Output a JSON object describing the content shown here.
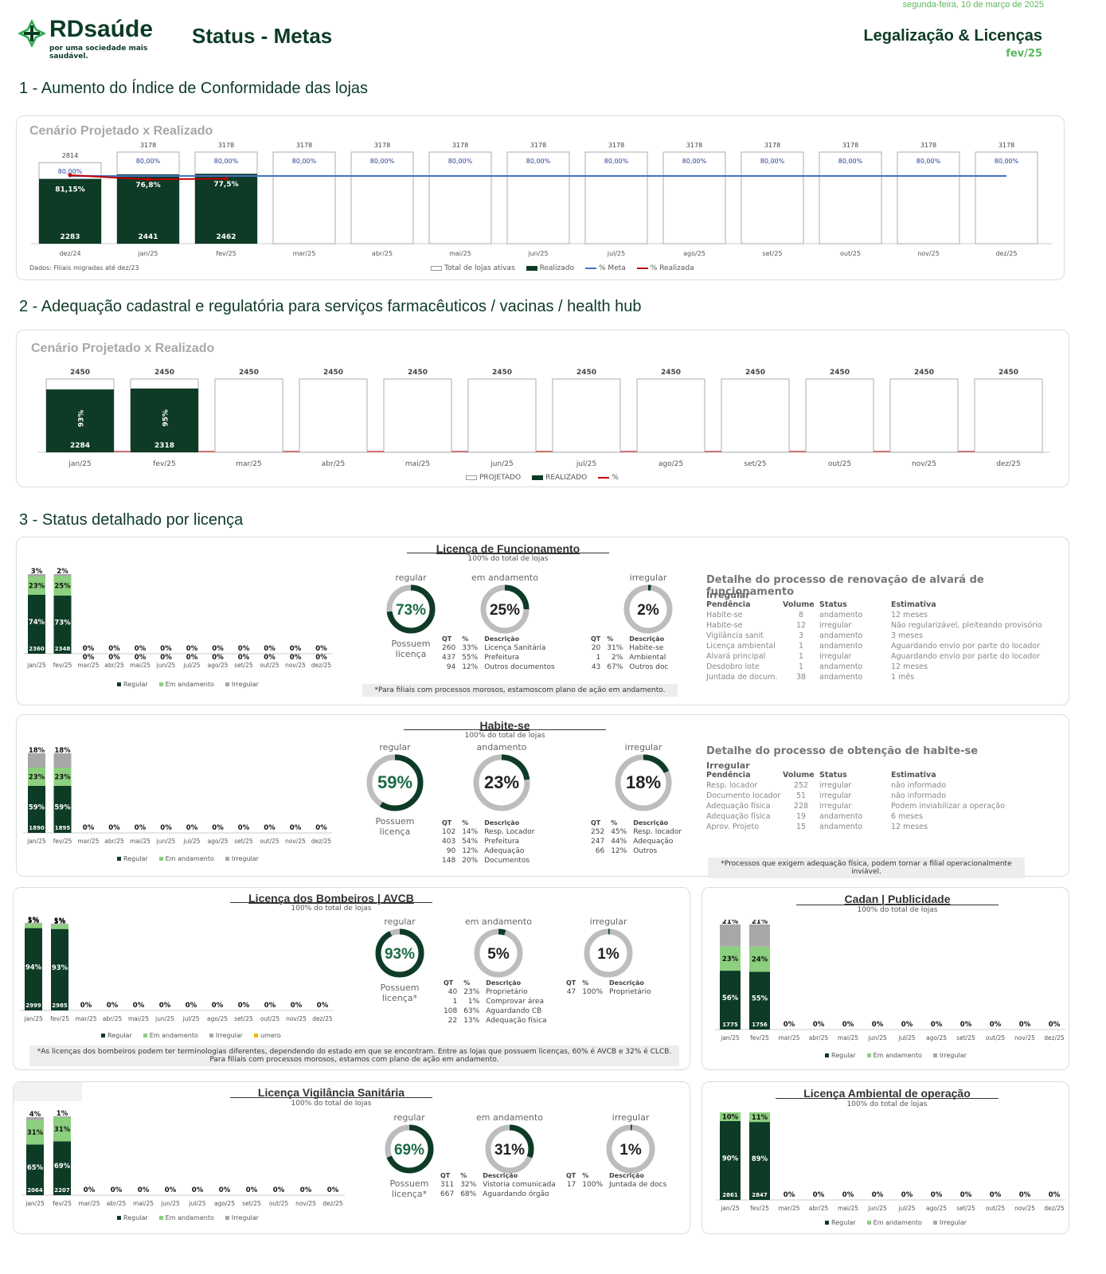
{
  "header": {
    "date": "segunda-feira, 10 de março de 2025",
    "logo_word": "RDsaúde",
    "logo_tag": "por uma sociedade mais saudável.",
    "title": "Status - Metas",
    "area": "Legalização & Licenças",
    "period": "fev/25"
  },
  "colors": {
    "dark": "#0d3b26",
    "light": "#8ccf7f",
    "gray": "#a7a7a7",
    "blue": "#4472c4",
    "red": "#c00000",
    "accent": "#2fa84f"
  },
  "s1": {
    "heading": "1 - Aumento do Índice de Conformidade das lojas",
    "panel_title": "Cenário Projetado x Realizado",
    "footnote": "Dados: Filiais migradas até dez/23",
    "legend": [
      "Total de lojas ativas",
      "Realizado",
      "% Meta",
      "% Realizada"
    ],
    "chart_data": {
      "type": "bar",
      "categories": [
        "dez/24",
        "jan/25",
        "fev/25",
        "mar/25",
        "abr/25",
        "mai/25",
        "jun/25",
        "jul/25",
        "ago/25",
        "set/25",
        "out/25",
        "nov/25",
        "dez/25"
      ],
      "series": [
        {
          "name": "Total de lojas ativas",
          "values": [
            2814,
            3178,
            3178,
            3178,
            3178,
            3178,
            3178,
            3178,
            3178,
            3178,
            3178,
            3178,
            3178
          ]
        },
        {
          "name": "Realizado",
          "values": [
            2283,
            2441,
            2462,
            null,
            null,
            null,
            null,
            null,
            null,
            null,
            null,
            null,
            null
          ]
        },
        {
          "name": "% Meta",
          "values": [
            80,
            80,
            80,
            80,
            80,
            80,
            80,
            80,
            80,
            80,
            80,
            80,
            80
          ]
        },
        {
          "name": "% Realizada",
          "values": [
            81.15,
            76.8,
            77.5,
            null,
            null,
            null,
            null,
            null,
            null,
            null,
            null,
            null,
            null
          ]
        }
      ],
      "meta_labels": [
        "80,00%",
        "80,00%",
        "80,00%",
        "80,00%",
        "80,00%",
        "80,00%",
        "80,00%",
        "80,00%",
        "80,00%",
        "80,00%",
        "80,00%",
        "80,00%",
        "80,00%"
      ],
      "pct_labels": [
        "81,15%",
        "76,8%",
        "77,5%"
      ]
    }
  },
  "s2": {
    "heading": "2 - Adequação cadastral e regulatória para serviços farmacêuticos / vacinas / health hub",
    "panel_title": "Cenário Projetado x Realizado",
    "legend": [
      "PROJETADO",
      "REALIZADO",
      "%"
    ],
    "chart_data": {
      "type": "bar",
      "categories": [
        "jan/25",
        "fev/25",
        "mar/25",
        "abr/25",
        "mai/25",
        "jun/25",
        "jul/25",
        "ago/25",
        "set/25",
        "out/25",
        "nov/25",
        "dez/25"
      ],
      "series": [
        {
          "name": "PROJETADO",
          "values": [
            2450,
            2450,
            2450,
            2450,
            2450,
            2450,
            2450,
            2450,
            2450,
            2450,
            2450,
            2450
          ]
        },
        {
          "name": "REALIZADO",
          "values": [
            2284,
            2318,
            null,
            null,
            null,
            null,
            null,
            null,
            null,
            null,
            null,
            null
          ]
        }
      ],
      "pct_labels": [
        "93%",
        "95%"
      ]
    }
  },
  "s3": {
    "heading": "3 - Status detalhado por licença"
  },
  "months": [
    "jan/25",
    "fev/25",
    "mar/25",
    "abr/25",
    "mai/25",
    "jun/25",
    "jul/25",
    "ago/25",
    "set/25",
    "out/25",
    "nov/25",
    "dez/25"
  ],
  "stack_legend": [
    "Regular",
    "Em andamento",
    "Irregular"
  ],
  "lf": {
    "title": "Licença de Funcionamento",
    "sub": "100% do total de lojas",
    "chart_data": {
      "type": "bar",
      "stacked": true,
      "series": [
        {
          "name": "Regular",
          "values": [
            74,
            73
          ]
        },
        {
          "name": "Em andamento",
          "values": [
            23,
            25
          ]
        },
        {
          "name": "Irregular",
          "values": [
            3,
            2
          ]
        }
      ],
      "counts": [
        "2360",
        "2348"
      ]
    },
    "donuts": [
      {
        "top": "regular",
        "pct": "73%",
        "value": 73,
        "bottom": "Possuem licença"
      },
      {
        "top": "em andamento",
        "pct": "25%",
        "value": 25,
        "bottom": ""
      },
      {
        "top": "irregular",
        "pct": "2%",
        "value": 2,
        "bottom": ""
      }
    ],
    "t_and": {
      "h": [
        "QT",
        "%",
        "Descrição"
      ],
      "rows": [
        [
          "260",
          "33%",
          "Licença Sanitária"
        ],
        [
          "437",
          "55%",
          "Prefeitura"
        ],
        [
          "94",
          "12%",
          "Outros documentos"
        ]
      ]
    },
    "t_irr": {
      "h": [
        "QT",
        "%",
        "Descrição"
      ],
      "rows": [
        [
          "20",
          "31%",
          "Habite-se"
        ],
        [
          "1",
          "2%",
          "Ambiental"
        ],
        [
          "43",
          "67%",
          "Outros doc"
        ]
      ]
    },
    "note": "*Para filiais com processos morosos, estamoscom plano de ação em andamento.",
    "detail": {
      "title": "Detalhe do processo de renovação de alvará de funcionamento",
      "sub": "Irregular",
      "h": [
        "Pendência",
        "Volume",
        "Status",
        "Estimativa"
      ],
      "rows": [
        [
          "Habite-se",
          "8",
          "andamento",
          "12 meses"
        ],
        [
          "Habite-se",
          "12",
          "irregular",
          "Não regularizável, pleiteando provisório"
        ],
        [
          "Vigilância sanit",
          "3",
          "andamento",
          "3 meses"
        ],
        [
          "Licença ambiental",
          "1",
          "andamento",
          "Aguardando envio por parte do locador"
        ],
        [
          "Alvará principal",
          "1",
          "irregular",
          "Aguardando envio por parte do locador"
        ],
        [
          "Desdobro lote",
          "1",
          "andamento",
          "12 meses"
        ],
        [
          "Juntada de docum.",
          "38",
          "andamento",
          "1 mês"
        ]
      ]
    }
  },
  "hs": {
    "title": "Habite-se",
    "sub": "100% do total de lojas",
    "chart_data": {
      "type": "bar",
      "stacked": true,
      "series": [
        {
          "name": "Regular",
          "values": [
            59,
            59
          ]
        },
        {
          "name": "Em andamento",
          "values": [
            23,
            23
          ]
        },
        {
          "name": "Irregular",
          "values": [
            18,
            18
          ]
        }
      ],
      "counts": [
        "1890",
        "1895"
      ]
    },
    "donuts": [
      {
        "top": "regular",
        "pct": "59%",
        "value": 59,
        "bottom": "Possuem licença"
      },
      {
        "top": "andamento",
        "pct": "23%",
        "value": 23,
        "bottom": ""
      },
      {
        "top": "irregular",
        "pct": "18%",
        "value": 18,
        "bottom": ""
      }
    ],
    "t_and": {
      "h": [
        "QT",
        "%",
        "Descrição"
      ],
      "rows": [
        [
          "102",
          "14%",
          "Resp. Locador"
        ],
        [
          "403",
          "54%",
          "Prefeitura"
        ],
        [
          "90",
          "12%",
          "Adequação"
        ],
        [
          "148",
          "20%",
          "Documentos"
        ]
      ]
    },
    "t_irr": {
      "h": [
        "QT",
        "%",
        "Descrição"
      ],
      "rows": [
        [
          "252",
          "45%",
          "Resp. locador"
        ],
        [
          "247",
          "44%",
          "Adequação"
        ],
        [
          "66",
          "12%",
          "Outros"
        ]
      ]
    },
    "note": "*Processos que exigem adequação física, podem tornar a filial operacionalmente inviável.",
    "detail": {
      "title": "Detalhe do processo de obtenção de habite-se",
      "sub": "Irregular",
      "h": [
        "Pendência",
        "Volume",
        "Status",
        "Estimativa"
      ],
      "rows": [
        [
          "Resp. locador",
          "252",
          "irregular",
          "não informado"
        ],
        [
          "Documento locador",
          "51",
          "irregular",
          "não informado"
        ],
        [
          "Adequação física",
          "228",
          "irregular",
          "Podem inviabilizar a operação"
        ],
        [
          "Adequação física",
          "19",
          "andamento",
          "6 meses"
        ],
        [
          "Aprov. Projeto",
          "15",
          "andamento",
          "12 meses"
        ]
      ]
    }
  },
  "bo": {
    "title": "Licença dos Bombeiros | AVCB",
    "sub": "100% do total de lojas",
    "chart_data": {
      "type": "bar",
      "stacked": true,
      "series": [
        {
          "name": "Regular",
          "values": [
            94,
            93
          ]
        },
        {
          "name": "Em andamento",
          "values": [
            5,
            5
          ]
        },
        {
          "name": "Irregular",
          "values": [
            1,
            1
          ]
        }
      ],
      "counts": [
        "2999",
        "2985"
      ]
    },
    "legend": [
      "Regular",
      "Em andamento",
      "Irregular",
      "umero"
    ],
    "donuts": [
      {
        "top": "regular",
        "pct": "93%",
        "value": 93,
        "bottom": "Possuem licença*"
      },
      {
        "top": "em andamento",
        "pct": "5%",
        "value": 5,
        "bottom": ""
      },
      {
        "top": "irregular",
        "pct": "1%",
        "value": 1,
        "bottom": ""
      }
    ],
    "t_and": {
      "h": [
        "QT",
        "%",
        "Descrição"
      ],
      "rows": [
        [
          "40",
          "23%",
          "Proprietário"
        ],
        [
          "1",
          "1%",
          "Comprovar área"
        ],
        [
          "108",
          "63%",
          "Aguardando CB"
        ],
        [
          "22",
          "13%",
          "Adequação física"
        ]
      ]
    },
    "t_irr": {
      "h": [
        "QT",
        "%",
        "Descrição"
      ],
      "rows": [
        [
          "47",
          "100%",
          "Proprietário"
        ]
      ]
    },
    "note": "*As licenças dos bombeiros podem ter terminologias diferentes, dependendo do estado em que se encontram. Entre as lojas que possuem licenças, 60% é AVCB e 32% é CLCB. Para filiais com processos morosos, estamos com plano de ação em andamento."
  },
  "vs": {
    "title": "Licença Vigilância Sanitária",
    "sub": "100% do total de lojas",
    "chart_data": {
      "type": "bar",
      "stacked": true,
      "series": [
        {
          "name": "Regular",
          "values": [
            65,
            69
          ]
        },
        {
          "name": "Em andamento",
          "values": [
            31,
            31
          ]
        },
        {
          "name": "Irregular",
          "values": [
            4,
            1
          ]
        }
      ],
      "counts": [
        "2064",
        "2207"
      ]
    },
    "donuts": [
      {
        "top": "regular",
        "pct": "69%",
        "value": 69,
        "bottom": "Possuem licença*"
      },
      {
        "top": "em andamento",
        "pct": "31%",
        "value": 31,
        "bottom": ""
      },
      {
        "top": "irregular",
        "pct": "1%",
        "value": 1,
        "bottom": ""
      }
    ],
    "t_and": {
      "h": [
        "QT",
        "%",
        "Descrição"
      ],
      "rows": [
        [
          "311",
          "32%",
          "Vistoria comunicada"
        ],
        [
          "667",
          "68%",
          "Aguardando órgão"
        ]
      ]
    },
    "t_irr": {
      "h": [
        "QT",
        "%",
        "Descrição"
      ],
      "rows": [
        [
          "17",
          "100%",
          "Juntada de docs"
        ]
      ]
    }
  },
  "ca": {
    "title": "Cadan | Publicidade",
    "sub": "100% do total de lojas",
    "chart_data": {
      "type": "bar",
      "stacked": true,
      "series": [
        {
          "name": "Regular",
          "values": [
            56,
            55
          ]
        },
        {
          "name": "Em andamento",
          "values": [
            23,
            24
          ]
        },
        {
          "name": "Irregular",
          "values": [
            21,
            21
          ]
        }
      ],
      "counts": [
        "1775",
        "1756"
      ]
    }
  },
  "am": {
    "title": "Licença Ambiental de operação",
    "sub": "100% do total de lojas",
    "chart_data": {
      "type": "bar",
      "stacked": true,
      "series": [
        {
          "name": "Regular",
          "values": [
            90,
            89
          ]
        },
        {
          "name": "Em andamento",
          "values": [
            10,
            11
          ]
        },
        {
          "name": "Irregular",
          "values": [
            0,
            0
          ]
        }
      ],
      "counts": [
        "2861",
        "2847"
      ]
    }
  }
}
